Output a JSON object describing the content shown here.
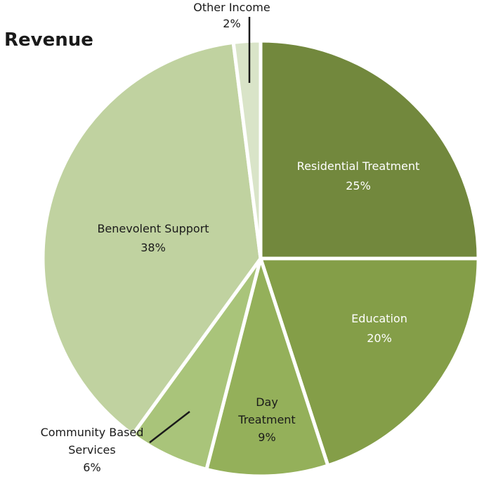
{
  "chart_data": {
    "type": "pie",
    "title": "Revenue",
    "slices": [
      {
        "label": "Residential Treatment",
        "value": 25,
        "value_label": "25%",
        "color": "#72883d",
        "text_color": "#ffffff"
      },
      {
        "label": "Education",
        "value": 20,
        "value_label": "20%",
        "color": "#849e48",
        "text_color": "#ffffff"
      },
      {
        "label": "Day Treatment",
        "value": 9,
        "value_label": "9%",
        "color": "#94b05a",
        "text_color": "#1a1a1a"
      },
      {
        "label": "Community Based Services",
        "value": 6,
        "value_label": "6%",
        "color": "#a9c47a",
        "text_color": "#1a1a1a"
      },
      {
        "label": "Benevolent Support",
        "value": 38,
        "value_label": "38%",
        "color": "#c0d2a0",
        "text_color": "#1a1a1a"
      },
      {
        "label": "Other Income",
        "value": 2,
        "value_label": "2%",
        "color": "#d9e4c8",
        "text_color": "#1a1a1a"
      }
    ]
  }
}
